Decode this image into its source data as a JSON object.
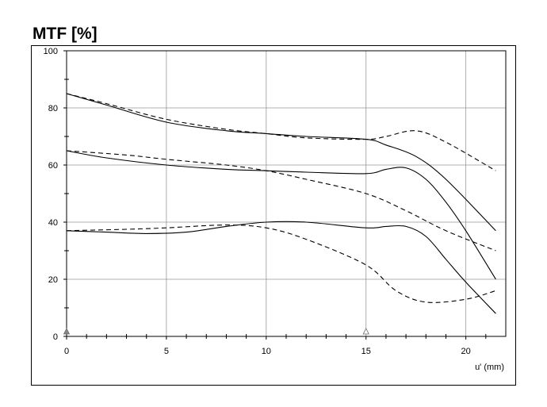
{
  "chart_data": {
    "type": "line",
    "title": "MTF [%]",
    "xlabel": "u' (mm)",
    "ylabel": "",
    "xlim": [
      0,
      22
    ],
    "ylim": [
      0,
      100
    ],
    "x_ticks": [
      0,
      5,
      10,
      15,
      20
    ],
    "y_ticks": [
      0,
      20,
      40,
      60,
      80,
      100
    ],
    "grid": true,
    "series": [
      {
        "style": "solid",
        "x": [
          0,
          2,
          5,
          8,
          10,
          12,
          15,
          16,
          17.5,
          19,
          21.5
        ],
        "y": [
          85,
          81,
          75,
          72,
          71,
          70,
          69,
          67,
          63,
          55,
          37
        ]
      },
      {
        "style": "dashed",
        "x": [
          0,
          2,
          5,
          8,
          10,
          12,
          15,
          16,
          17.5,
          19,
          21.5
        ],
        "y": [
          85,
          81.5,
          76,
          72.5,
          71,
          69.5,
          69,
          70,
          72,
          68,
          58
        ]
      },
      {
        "style": "solid",
        "x": [
          0,
          2,
          5,
          8,
          10,
          12,
          15,
          16,
          17,
          18,
          19,
          20,
          21.5
        ],
        "y": [
          65,
          62.5,
          60,
          58.5,
          58,
          57.5,
          57,
          58.5,
          59,
          55,
          47,
          37,
          20
        ]
      },
      {
        "style": "dashed",
        "x": [
          0,
          3,
          5,
          8,
          10,
          12,
          15,
          17,
          19,
          21.5
        ],
        "y": [
          65,
          63.5,
          62,
          60,
          58,
          55,
          50,
          44,
          37,
          30
        ]
      },
      {
        "style": "solid",
        "x": [
          0,
          2,
          4,
          6,
          8,
          10,
          12,
          15,
          16,
          17,
          18,
          19,
          20,
          21.5
        ],
        "y": [
          37,
          36.5,
          36,
          36.5,
          38.5,
          40,
          40,
          38,
          38.5,
          38.5,
          35,
          27,
          19,
          8
        ]
      },
      {
        "style": "dashed",
        "x": [
          0,
          3,
          5,
          8,
          10,
          12,
          15,
          16.5,
          18,
          20,
          21.5
        ],
        "y": [
          37,
          37.5,
          38,
          39,
          38,
          34,
          25,
          16,
          12,
          13,
          16
        ]
      }
    ],
    "markers": [
      {
        "x": 0,
        "y": 0,
        "shape": "triangle",
        "fill": "#888888"
      },
      {
        "x": 15,
        "y": 0,
        "shape": "triangle",
        "fill": "#ffffff"
      }
    ],
    "colors": {
      "line": "#000000",
      "grid": "#999999"
    }
  }
}
